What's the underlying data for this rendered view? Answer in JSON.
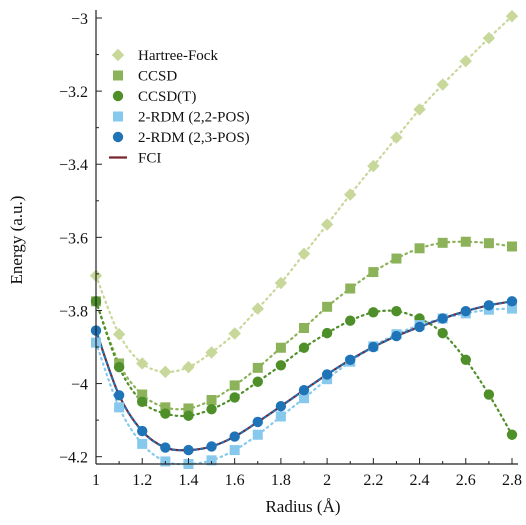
{
  "chart_data": {
    "type": "line",
    "title": "",
    "xlabel": "Radius (Å)",
    "ylabel": "Energy (a.u.)",
    "xlim": [
      1.0,
      2.8
    ],
    "ylim": [
      -4.22,
      -3.0
    ],
    "xticks": [
      1,
      1.2,
      1.4,
      1.6,
      1.8,
      2,
      2.2,
      2.4,
      2.6,
      2.8
    ],
    "xtick_labels": [
      "1",
      "1.2",
      "1.4",
      "1.6",
      "1.8",
      "2",
      "2.2",
      "2.4",
      "2.6",
      "2.8"
    ],
    "yticks": [
      -3.0,
      -3.2,
      -3.4,
      -3.6,
      -3.8,
      -4.0,
      -4.2
    ],
    "ytick_labels": [
      "−3",
      "−3.2",
      "−3.4",
      "−3.6",
      "−3.8",
      "−4",
      "−4.2"
    ],
    "grid": false,
    "legend_position": "top-left",
    "x": [
      1.0,
      1.1,
      1.2,
      1.3,
      1.4,
      1.5,
      1.6,
      1.7,
      1.8,
      1.9,
      2.0,
      2.1,
      2.2,
      2.3,
      2.4,
      2.5,
      2.6,
      2.7,
      2.8
    ],
    "series": [
      {
        "name": "Hartree-Fock",
        "marker": "diamond",
        "color": "#c8d89a",
        "line": "dotted",
        "values": [
          -3.705,
          -3.865,
          -3.945,
          -3.968,
          -3.955,
          -3.915,
          -3.863,
          -3.795,
          -3.725,
          -3.645,
          -3.565,
          -3.483,
          -3.405,
          -3.327,
          -3.25,
          -3.182,
          -3.118,
          -3.055,
          -2.995
        ]
      },
      {
        "name": "CCSD",
        "marker": "square",
        "color": "#8db35a",
        "line": "dotted",
        "values": [
          -3.775,
          -3.945,
          -4.03,
          -4.065,
          -4.068,
          -4.045,
          -4.005,
          -3.957,
          -3.902,
          -3.848,
          -3.79,
          -3.74,
          -3.695,
          -3.658,
          -3.63,
          -3.615,
          -3.612,
          -3.616,
          -3.625
        ]
      },
      {
        "name": "CCSD(T)",
        "marker": "circle",
        "color": "#4e8f2a",
        "line": "dotted",
        "values": [
          -3.775,
          -3.955,
          -4.05,
          -4.082,
          -4.088,
          -4.07,
          -4.038,
          -3.995,
          -3.95,
          -3.902,
          -3.862,
          -3.828,
          -3.805,
          -3.802,
          -3.822,
          -3.862,
          -3.935,
          -4.03,
          -4.14
        ]
      },
      {
        "name": "2-RDM (2,2-POS)",
        "marker": "square",
        "color": "#86c9ec",
        "line": "dotted",
        "values": [
          -3.888,
          -4.065,
          -4.165,
          -4.213,
          -4.22,
          -4.21,
          -4.182,
          -4.14,
          -4.09,
          -4.04,
          -3.988,
          -3.94,
          -3.898,
          -3.865,
          -3.84,
          -3.822,
          -3.808,
          -3.798,
          -3.795
        ]
      },
      {
        "name": "2-RDM (2,3-POS)",
        "marker": "circle",
        "color": "#1f73b7",
        "line": "dotted",
        "values": [
          -3.855,
          -4.032,
          -4.13,
          -4.175,
          -4.182,
          -4.172,
          -4.145,
          -4.105,
          -4.062,
          -4.018,
          -3.975,
          -3.935,
          -3.9,
          -3.87,
          -3.845,
          -3.822,
          -3.802,
          -3.786,
          -3.775
        ]
      },
      {
        "name": "FCI",
        "marker": "none",
        "color": "#7a2430",
        "line": "solid",
        "values": [
          -3.855,
          -4.032,
          -4.13,
          -4.175,
          -4.182,
          -4.172,
          -4.145,
          -4.105,
          -4.062,
          -4.018,
          -3.975,
          -3.935,
          -3.9,
          -3.87,
          -3.845,
          -3.822,
          -3.802,
          -3.786,
          -3.775
        ]
      }
    ]
  }
}
